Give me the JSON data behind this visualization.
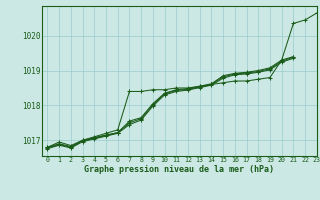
{
  "title": "Graphe pression niveau de la mer (hPa)",
  "bg_color": "#cce8e4",
  "plot_bg_color": "#cce8e4",
  "grid_color": "#99cccc",
  "line_color": "#1a5c1a",
  "xlim": [
    -0.5,
    23
  ],
  "ylim": [
    1016.55,
    1020.85
  ],
  "yticks": [
    1017,
    1018,
    1019,
    1020
  ],
  "xticks": [
    0,
    1,
    2,
    3,
    4,
    5,
    6,
    7,
    8,
    9,
    10,
    11,
    12,
    13,
    14,
    15,
    16,
    17,
    18,
    19,
    20,
    21,
    22,
    23
  ],
  "series": [
    {
      "x": [
        0,
        1,
        2,
        3,
        4,
        5,
        6,
        7,
        8,
        9,
        10,
        11,
        12,
        13,
        14,
        15,
        16,
        17,
        18,
        19,
        20,
        21,
        22,
        23
      ],
      "y": [
        1016.8,
        1016.95,
        1016.85,
        1017.0,
        1017.1,
        1017.2,
        1017.3,
        1018.4,
        1018.4,
        1018.45,
        1018.45,
        1018.5,
        1018.5,
        1018.55,
        1018.6,
        1018.65,
        1018.7,
        1018.7,
        1018.75,
        1018.8,
        1019.3,
        1020.35,
        1020.45,
        1020.65
      ]
    },
    {
      "x": [
        0,
        1,
        2,
        3,
        4,
        5,
        6,
        7,
        8,
        9,
        10,
        11,
        12,
        13,
        14,
        15,
        16,
        17,
        18,
        19,
        20,
        21
      ],
      "y": [
        1016.8,
        1016.9,
        1016.82,
        1017.0,
        1017.08,
        1017.15,
        1017.22,
        1017.55,
        1017.65,
        1018.05,
        1018.35,
        1018.45,
        1018.48,
        1018.55,
        1018.62,
        1018.85,
        1018.92,
        1018.95,
        1019.0,
        1019.08,
        1019.3,
        1019.4
      ]
    },
    {
      "x": [
        0,
        1,
        2,
        3,
        4,
        5,
        6,
        7,
        8,
        9,
        10,
        11,
        12,
        13,
        14,
        15,
        16,
        17,
        18,
        19,
        20,
        21
      ],
      "y": [
        1016.78,
        1016.88,
        1016.8,
        1016.98,
        1017.06,
        1017.14,
        1017.22,
        1017.5,
        1017.62,
        1018.02,
        1018.33,
        1018.43,
        1018.46,
        1018.53,
        1018.6,
        1018.82,
        1018.9,
        1018.93,
        1018.97,
        1019.05,
        1019.27,
        1019.38
      ]
    },
    {
      "x": [
        0,
        1,
        2,
        3,
        4,
        5,
        6,
        7,
        8,
        9,
        10,
        11,
        12,
        13,
        14,
        15,
        16,
        17,
        18,
        19,
        20,
        21
      ],
      "y": [
        1016.76,
        1016.86,
        1016.78,
        1016.96,
        1017.04,
        1017.12,
        1017.2,
        1017.45,
        1017.58,
        1017.98,
        1018.3,
        1018.4,
        1018.44,
        1018.51,
        1018.58,
        1018.78,
        1018.88,
        1018.9,
        1018.95,
        1019.02,
        1019.24,
        1019.35
      ]
    }
  ]
}
